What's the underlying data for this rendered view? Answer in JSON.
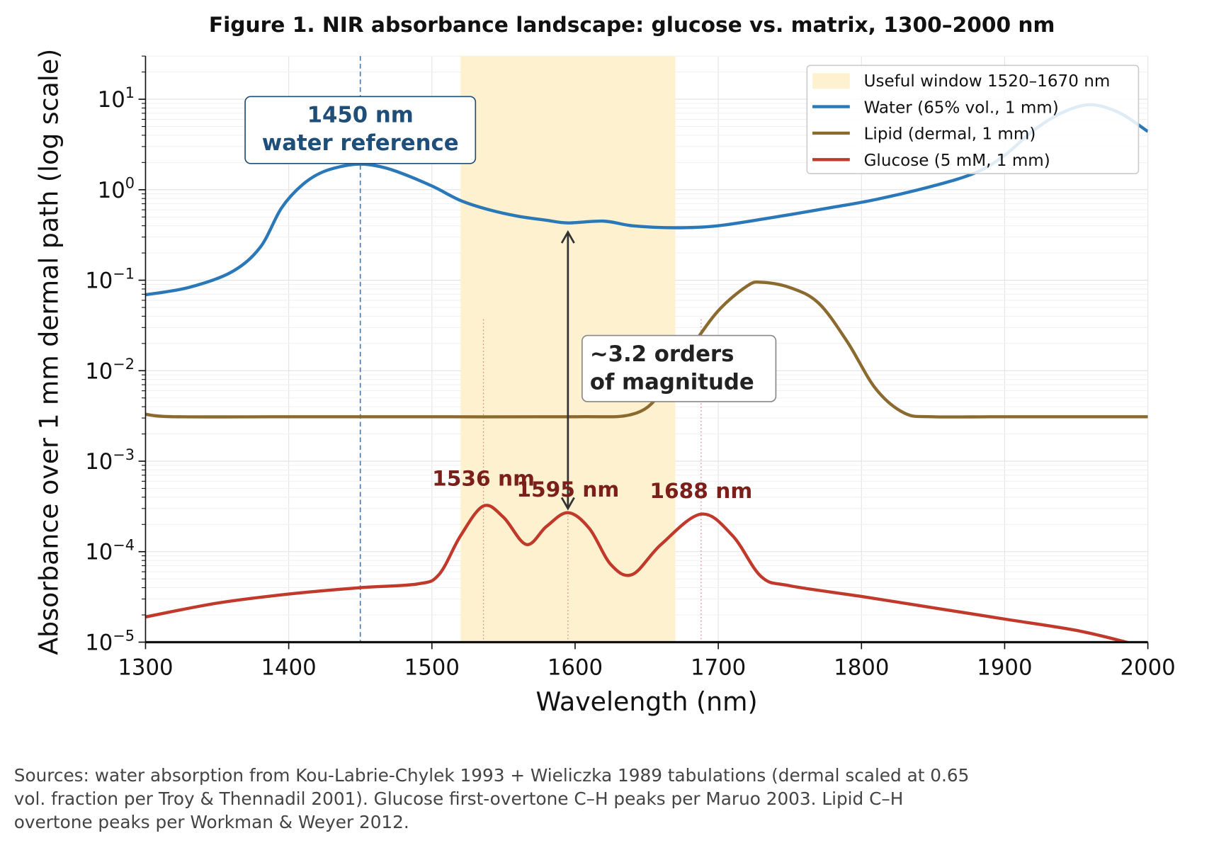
{
  "chart_data": {
    "type": "line",
    "title": "Figure 1.  NIR absorbance landscape:  glucose vs. matrix, 1300–2000 nm",
    "xlabel": "Wavelength (nm)",
    "ylabel": "Absorbance over 1 mm dermal path  (log scale)",
    "xlim": [
      1300,
      2000
    ],
    "ylim": [
      1e-05,
      30
    ],
    "yscale": "log",
    "grid": true,
    "legend_position": "top-right",
    "xticks": [
      "1300",
      "1400",
      "1500",
      "1600",
      "1700",
      "1800",
      "1900",
      "2000"
    ],
    "yticks": [
      {
        "base": "10",
        "exp": "−5",
        "value": 1e-05
      },
      {
        "base": "10",
        "exp": "−4",
        "value": 0.0001
      },
      {
        "base": "10",
        "exp": "−3",
        "value": 0.001
      },
      {
        "base": "10",
        "exp": "−2",
        "value": 0.01
      },
      {
        "base": "10",
        "exp": "−1",
        "value": 0.1
      },
      {
        "base": "10",
        "exp": "0",
        "value": 1
      },
      {
        "base": "10",
        "exp": "1",
        "value": 10
      }
    ],
    "window": {
      "name": "Useful window 1520–1670 nm",
      "from": 1520,
      "to": 1670,
      "color": "#fdf1cf"
    },
    "series": [
      {
        "name": "Water (65% vol., 1 mm)",
        "color": "#2a78b8",
        "x": [
          1300,
          1330,
          1360,
          1380,
          1395,
          1410,
          1425,
          1445,
          1460,
          1475,
          1500,
          1520,
          1540,
          1560,
          1580,
          1595,
          1620,
          1640,
          1670,
          1700,
          1740,
          1780,
          1810,
          1850,
          1880,
          1900,
          1920,
          1940,
          1960,
          1980,
          2000
        ],
        "y": [
          0.069,
          0.083,
          0.123,
          0.23,
          0.63,
          1.15,
          1.6,
          1.9,
          1.85,
          1.6,
          1.1,
          0.76,
          0.6,
          0.51,
          0.46,
          0.43,
          0.45,
          0.4,
          0.38,
          0.4,
          0.5,
          0.64,
          0.78,
          1.1,
          1.55,
          2.4,
          4.5,
          7.1,
          8.7,
          7.1,
          4.4
        ]
      },
      {
        "name": "Lipid (dermal, 1 mm)",
        "color": "#8b6a2f",
        "x": [
          1300,
          1320,
          1400,
          1500,
          1600,
          1640,
          1660,
          1680,
          1700,
          1720,
          1730,
          1750,
          1770,
          1790,
          1810,
          1830,
          1850,
          1900,
          2000
        ],
        "y": [
          0.0033,
          0.0031,
          0.0031,
          0.0031,
          0.0031,
          0.0033,
          0.0056,
          0.017,
          0.046,
          0.086,
          0.095,
          0.083,
          0.056,
          0.021,
          0.0063,
          0.0034,
          0.0031,
          0.0031,
          0.0031
        ]
      },
      {
        "name": "Glucose (5 mM, 1 mm)",
        "color": "#c0392b",
        "x": [
          1300,
          1350,
          1400,
          1450,
          1490,
          1505,
          1520,
          1536,
          1550,
          1566,
          1580,
          1595,
          1610,
          1625,
          1640,
          1660,
          1688,
          1710,
          1730,
          1750,
          1800,
          1850,
          1900,
          1950,
          1985,
          2000
        ],
        "y": [
          1.9e-05,
          2.7e-05,
          3.4e-05,
          4e-05,
          4.4e-05,
          5.6e-05,
          0.00015,
          0.00032,
          0.00024,
          0.00012,
          0.00019,
          0.00027,
          0.00018,
          7.2e-05,
          5.6e-05,
          0.00012,
          0.00026,
          0.00015,
          5.3e-05,
          4.2e-05,
          3.2e-05,
          2.4e-05,
          1.8e-05,
          1.35e-05,
          1e-05,
          8.5e-06
        ]
      }
    ],
    "annotations": {
      "water_ref": {
        "line1": "1450 nm",
        "line2": "water reference",
        "x": 1450,
        "color": "#1f4e79"
      },
      "gap": {
        "line1": "~3.2 orders",
        "line2": "of magnitude",
        "x": 1595,
        "from": 0.0003,
        "to": 0.34
      },
      "peaks": [
        {
          "label": "1536 nm",
          "x": 1536
        },
        {
          "label": "1595 nm",
          "x": 1595
        },
        {
          "label": "1688 nm",
          "x": 1688
        }
      ],
      "peak_color": "#7b1f1a"
    }
  },
  "footer": {
    "lines": [
      "Sources:  water absorption from Kou-Labrie-Chylek 1993 + Wieliczka 1989 tabulations (dermal scaled at 0.65",
      "vol. fraction per Troy & Thennadil 2001).  Glucose first-overtone C–H peaks per Maruo 2003.  Lipid C–H",
      "overtone peaks per Workman & Weyer 2012."
    ]
  }
}
